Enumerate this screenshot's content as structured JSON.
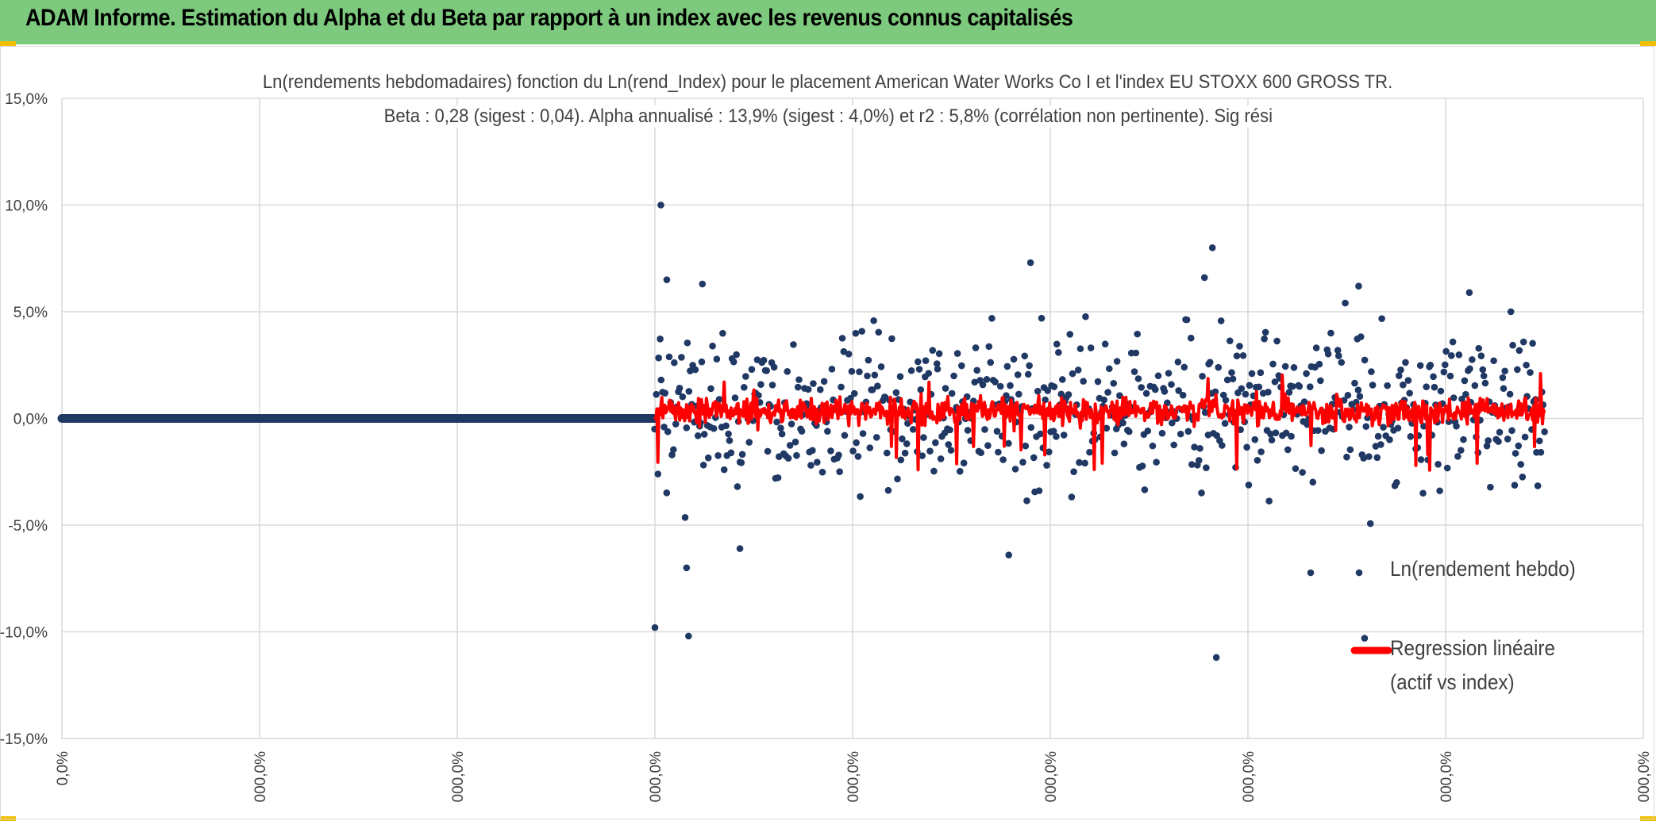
{
  "header": {
    "title": "ADAM Informe. Estimation du Alpha et du Beta par rapport à un index avec les revenus connus capitalisés"
  },
  "colors": {
    "banner": "#7dc97d",
    "scatter": "#203864",
    "regression": "#ff0000",
    "grid": "#d9d9d9"
  },
  "chart_data": {
    "type": "scatter",
    "title_line1": "Ln(rendements hebdomadaires) fonction du Ln(rend_Index) pour le placement American Water Works Co I et l'index EU STOXX 600 GROSS TR.",
    "title_line2": "Beta : 0,28 (sigest : 0,04). Alpha annualisé : 13,9% (sigest : 4,0%) et r2 : 5,8% (corrélation non pertinente). Sig rési",
    "y_ticks": [
      "15,0%",
      "10,0%",
      "5,0%",
      "0,0%",
      "-5,0%",
      "-10,0%",
      "-15,0%"
    ],
    "y_tick_values": [
      15,
      10,
      5,
      0,
      -5,
      -10,
      -15
    ],
    "ylim": [
      -15,
      15
    ],
    "x_ticks": [
      "0,0%",
      "000,0%",
      "000,0%",
      "000,0%",
      "000,0%",
      "000,0%",
      "000,0%",
      "000,0%",
      "000,0%"
    ],
    "xlim": [
      0,
      8
    ],
    "x_data_start": 3,
    "x_data_end": 7.5,
    "zero_segment": [
      0,
      3
    ],
    "legend": {
      "series1": "Ln(rendement hebdo)",
      "series2_line1": "Regression linéaire",
      "series2_line2": "(actif vs index)",
      "position": "bottom-right"
    },
    "series": [
      {
        "name": "Ln(rendement hebdo)",
        "highlight_points": [
          {
            "x": 3.03,
            "y": 10.0
          },
          {
            "x": 3.06,
            "y": 6.5
          },
          {
            "x": 3.24,
            "y": 6.3
          },
          {
            "x": 3.0,
            "y": -9.8
          },
          {
            "x": 3.17,
            "y": -10.2
          },
          {
            "x": 4.9,
            "y": 7.3
          },
          {
            "x": 5.82,
            "y": 8.0
          },
          {
            "x": 5.78,
            "y": 6.6
          },
          {
            "x": 5.84,
            "y": -11.2
          },
          {
            "x": 6.56,
            "y": 6.2
          },
          {
            "x": 7.12,
            "y": 5.9
          },
          {
            "x": 7.33,
            "y": 5.0
          },
          {
            "x": 4.79,
            "y": -6.4
          },
          {
            "x": 3.43,
            "y": -6.1
          },
          {
            "x": 6.59,
            "y": -10.3
          },
          {
            "x": 3.16,
            "y": -7.0
          }
        ],
        "noise_std": 1.8,
        "mean": 0.4
      },
      {
        "name": "Regression linéaire",
        "mean": 0.35,
        "spread": 0.5
      }
    ]
  }
}
